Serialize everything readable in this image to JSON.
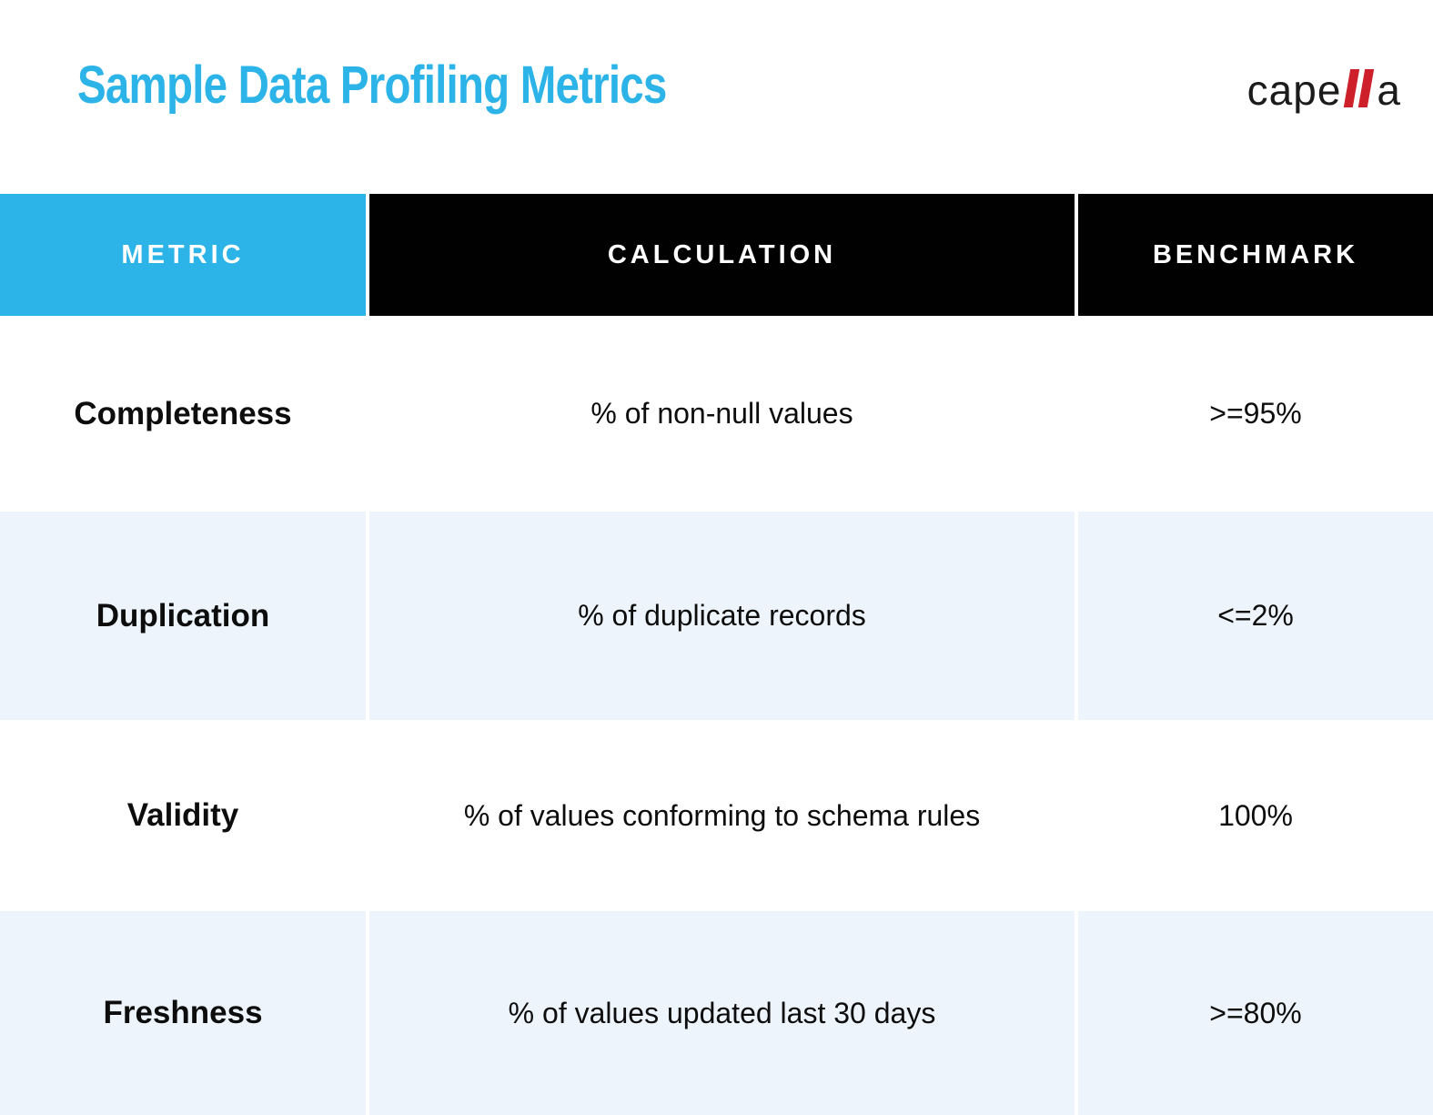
{
  "header": {
    "title": "Sample Data Profiling Metrics",
    "logo": {
      "part1": "cape",
      "slashes_represent": "ll",
      "part2": "a"
    }
  },
  "colors": {
    "accent_blue": "#2cb4e8",
    "header_black": "#010101",
    "row_alt_blue": "#edf4fb",
    "logo_red": "#ce202b",
    "header_text": "#ffffff",
    "body_text": "#0d0d0d"
  },
  "table": {
    "columns": [
      "METRIC",
      "CALCULATION",
      "BENCHMARK"
    ],
    "rows": [
      {
        "metric": "Completeness",
        "calculation": "% of non-null values",
        "benchmark": ">=95%"
      },
      {
        "metric": "Duplication",
        "calculation": "% of duplicate records",
        "benchmark": "<=2%"
      },
      {
        "metric": "Validity",
        "calculation": "% of values conforming to schema rules",
        "benchmark": "100%"
      },
      {
        "metric": "Freshness",
        "calculation": "% of values updated last 30 days",
        "benchmark": ">=80%"
      }
    ]
  }
}
